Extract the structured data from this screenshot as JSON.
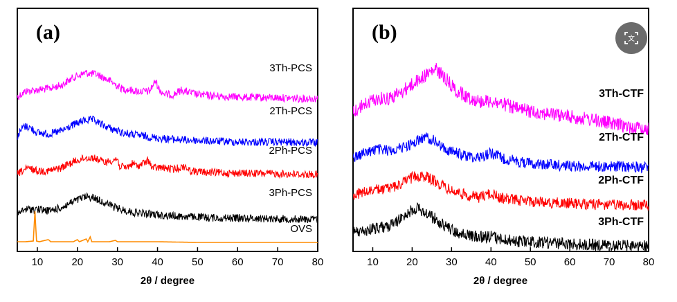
{
  "chart_data": [
    {
      "type": "line",
      "panel_label": "(a)",
      "xlabel": "2θ / degree",
      "ylabel": "",
      "xlim": [
        5,
        80
      ],
      "x_ticks": [
        10,
        20,
        30,
        40,
        50,
        60,
        70,
        80
      ],
      "y_ticks_shown": false,
      "grid": false,
      "legend": "none (series labels drawn inline at right)",
      "series": [
        {
          "name": "3Th-PCS",
          "color": "#ff00ff",
          "points": [
            [
              5,
              0.91
            ],
            [
              7,
              0.84
            ],
            [
              10,
              0.82
            ],
            [
              13,
              0.8
            ],
            [
              16,
              0.76
            ],
            [
              19,
              0.66
            ],
            [
              22,
              0.6
            ],
            [
              25,
              0.62
            ],
            [
              28,
              0.7
            ],
            [
              31,
              0.8
            ],
            [
              34,
              0.83
            ],
            [
              36,
              0.84
            ],
            [
              38,
              0.84
            ],
            [
              39.5,
              0.7
            ],
            [
              40.5,
              0.82
            ],
            [
              42,
              0.88
            ],
            [
              44,
              0.88
            ],
            [
              46,
              0.82
            ],
            [
              47,
              0.84
            ],
            [
              50,
              0.88
            ],
            [
              55,
              0.9
            ],
            [
              60,
              0.91
            ],
            [
              65,
              0.92
            ],
            [
              70,
              0.92
            ],
            [
              75,
              0.93
            ],
            [
              80,
              0.93
            ]
          ]
        },
        {
          "name": "2Th-PCS",
          "color": "#0000ff",
          "points": [
            [
              5,
              0.93
            ],
            [
              6.5,
              0.8
            ],
            [
              8,
              0.81
            ],
            [
              10,
              0.88
            ],
            [
              13,
              0.9
            ],
            [
              16,
              0.86
            ],
            [
              19,
              0.78
            ],
            [
              22,
              0.72
            ],
            [
              24,
              0.72
            ],
            [
              27,
              0.8
            ],
            [
              30,
              0.86
            ],
            [
              33,
              0.9
            ],
            [
              36,
              0.92
            ],
            [
              40,
              0.95
            ],
            [
              45,
              0.97
            ],
            [
              50,
              0.98
            ],
            [
              55,
              0.99
            ],
            [
              60,
              1.0
            ],
            [
              70,
              1.0
            ],
            [
              80,
              1.01
            ]
          ]
        },
        {
          "name": "2Ph-PCS",
          "color": "#ff0000",
          "points": [
            [
              5,
              0.9
            ],
            [
              7,
              0.84
            ],
            [
              8,
              0.83
            ],
            [
              10,
              0.86
            ],
            [
              13,
              0.86
            ],
            [
              16,
              0.82
            ],
            [
              19,
              0.74
            ],
            [
              22,
              0.69
            ],
            [
              24,
              0.69
            ],
            [
              27,
              0.75
            ],
            [
              30,
              0.7
            ],
            [
              30.5,
              0.8
            ],
            [
              32,
              0.82
            ],
            [
              34,
              0.76
            ],
            [
              35,
              0.8
            ],
            [
              38,
              0.72
            ],
            [
              38.5,
              0.82
            ],
            [
              41,
              0.82
            ],
            [
              44,
              0.84
            ],
            [
              47,
              0.8
            ],
            [
              48,
              0.86
            ],
            [
              52,
              0.88
            ],
            [
              60,
              0.89
            ],
            [
              70,
              0.9
            ],
            [
              80,
              0.91
            ]
          ]
        },
        {
          "name": "3Ph-PCS",
          "color": "#000000",
          "points": [
            [
              5,
              0.92
            ],
            [
              7,
              0.86
            ],
            [
              10,
              0.86
            ],
            [
              13,
              0.88
            ],
            [
              16,
              0.84
            ],
            [
              19,
              0.76
            ],
            [
              22,
              0.7
            ],
            [
              24,
              0.71
            ],
            [
              27,
              0.78
            ],
            [
              30,
              0.85
            ],
            [
              34,
              0.9
            ],
            [
              38,
              0.92
            ],
            [
              42,
              0.94
            ],
            [
              46,
              0.95
            ],
            [
              50,
              0.96
            ],
            [
              55,
              0.97
            ],
            [
              60,
              0.97
            ],
            [
              70,
              0.98
            ],
            [
              80,
              0.99
            ]
          ]
        },
        {
          "name": "OVS",
          "color": "#ff8c00",
          "points": [
            [
              5,
              0.99
            ],
            [
              7,
              0.99
            ],
            [
              9,
              0.98
            ],
            [
              9.4,
              0.55
            ],
            [
              9.8,
              0.98
            ],
            [
              10.5,
              0.99
            ],
            [
              12.7,
              0.96
            ],
            [
              13,
              0.97
            ],
            [
              13.3,
              0.99
            ],
            [
              19,
              0.99
            ],
            [
              20,
              0.96
            ],
            [
              20.5,
              0.99
            ],
            [
              22.2,
              0.95
            ],
            [
              22.6,
              0.99
            ],
            [
              23.2,
              0.92
            ],
            [
              23.6,
              0.99
            ],
            [
              28,
              0.99
            ],
            [
              29.5,
              0.97
            ],
            [
              30,
              0.99
            ],
            [
              40,
              0.99
            ],
            [
              50,
              1.0
            ],
            [
              60,
              1.0
            ],
            [
              70,
              1.0
            ],
            [
              80,
              1.0
            ]
          ]
        }
      ]
    },
    {
      "type": "line",
      "panel_label": "(b)",
      "xlabel": "2θ / degree",
      "ylabel": "",
      "xlim": [
        5,
        80
      ],
      "x_ticks": [
        10,
        20,
        30,
        40,
        50,
        60,
        70,
        80
      ],
      "y_ticks_shown": false,
      "grid": false,
      "legend": "none (series labels drawn inline at right)",
      "series": [
        {
          "name": "3Th-CTF",
          "color": "#ff00ff",
          "points": [
            [
              5,
              0.86
            ],
            [
              8,
              0.8
            ],
            [
              11,
              0.76
            ],
            [
              14,
              0.76
            ],
            [
              17,
              0.72
            ],
            [
              20,
              0.66
            ],
            [
              23,
              0.6
            ],
            [
              26,
              0.55
            ],
            [
              28,
              0.6
            ],
            [
              31,
              0.7
            ],
            [
              34,
              0.75
            ],
            [
              37,
              0.78
            ],
            [
              40,
              0.78
            ],
            [
              43,
              0.8
            ],
            [
              47,
              0.84
            ],
            [
              52,
              0.86
            ],
            [
              57,
              0.88
            ],
            [
              62,
              0.9
            ],
            [
              67,
              0.92
            ],
            [
              72,
              0.95
            ],
            [
              76,
              0.97
            ],
            [
              80,
              0.98
            ]
          ]
        },
        {
          "name": "2Th-CTF",
          "color": "#0000ff",
          "points": [
            [
              5,
              0.92
            ],
            [
              8,
              0.88
            ],
            [
              11,
              0.85
            ],
            [
              14,
              0.86
            ],
            [
              17,
              0.84
            ],
            [
              20,
              0.8
            ],
            [
              23,
              0.74
            ],
            [
              25,
              0.76
            ],
            [
              28,
              0.84
            ],
            [
              31,
              0.88
            ],
            [
              34,
              0.91
            ],
            [
              37,
              0.92
            ],
            [
              40,
              0.88
            ],
            [
              43,
              0.93
            ],
            [
              47,
              0.96
            ],
            [
              52,
              0.98
            ],
            [
              57,
              0.99
            ],
            [
              62,
              1.0
            ],
            [
              70,
              1.0
            ],
            [
              80,
              1.01
            ]
          ]
        },
        {
          "name": "2Ph-CTF",
          "color": "#ff0000",
          "points": [
            [
              5,
              0.9
            ],
            [
              8,
              0.87
            ],
            [
              11,
              0.85
            ],
            [
              14,
              0.84
            ],
            [
              17,
              0.8
            ],
            [
              20,
              0.74
            ],
            [
              22,
              0.72
            ],
            [
              24,
              0.74
            ],
            [
              27,
              0.8
            ],
            [
              30,
              0.86
            ],
            [
              34,
              0.9
            ],
            [
              37,
              0.92
            ],
            [
              40,
              0.88
            ],
            [
              42,
              0.92
            ],
            [
              46,
              0.94
            ],
            [
              52,
              0.96
            ],
            [
              58,
              0.97
            ],
            [
              65,
              0.98
            ],
            [
              72,
              0.99
            ],
            [
              80,
              0.99
            ]
          ]
        },
        {
          "name": "3Ph-CTF",
          "color": "#000000",
          "points": [
            [
              5,
              0.89
            ],
            [
              8,
              0.88
            ],
            [
              11,
              0.85
            ],
            [
              14,
              0.84
            ],
            [
              17,
              0.78
            ],
            [
              19,
              0.72
            ],
            [
              21,
              0.69
            ],
            [
              23,
              0.72
            ],
            [
              26,
              0.78
            ],
            [
              29,
              0.85
            ],
            [
              32,
              0.9
            ],
            [
              35,
              0.92
            ],
            [
              38,
              0.93
            ],
            [
              40,
              0.92
            ],
            [
              43,
              0.95
            ],
            [
              47,
              0.96
            ],
            [
              52,
              0.97
            ],
            [
              58,
              0.98
            ],
            [
              65,
              0.99
            ],
            [
              72,
              1.0
            ],
            [
              80,
              1.0
            ]
          ]
        }
      ]
    }
  ],
  "lens_button": {
    "icon": "translate-icon"
  }
}
